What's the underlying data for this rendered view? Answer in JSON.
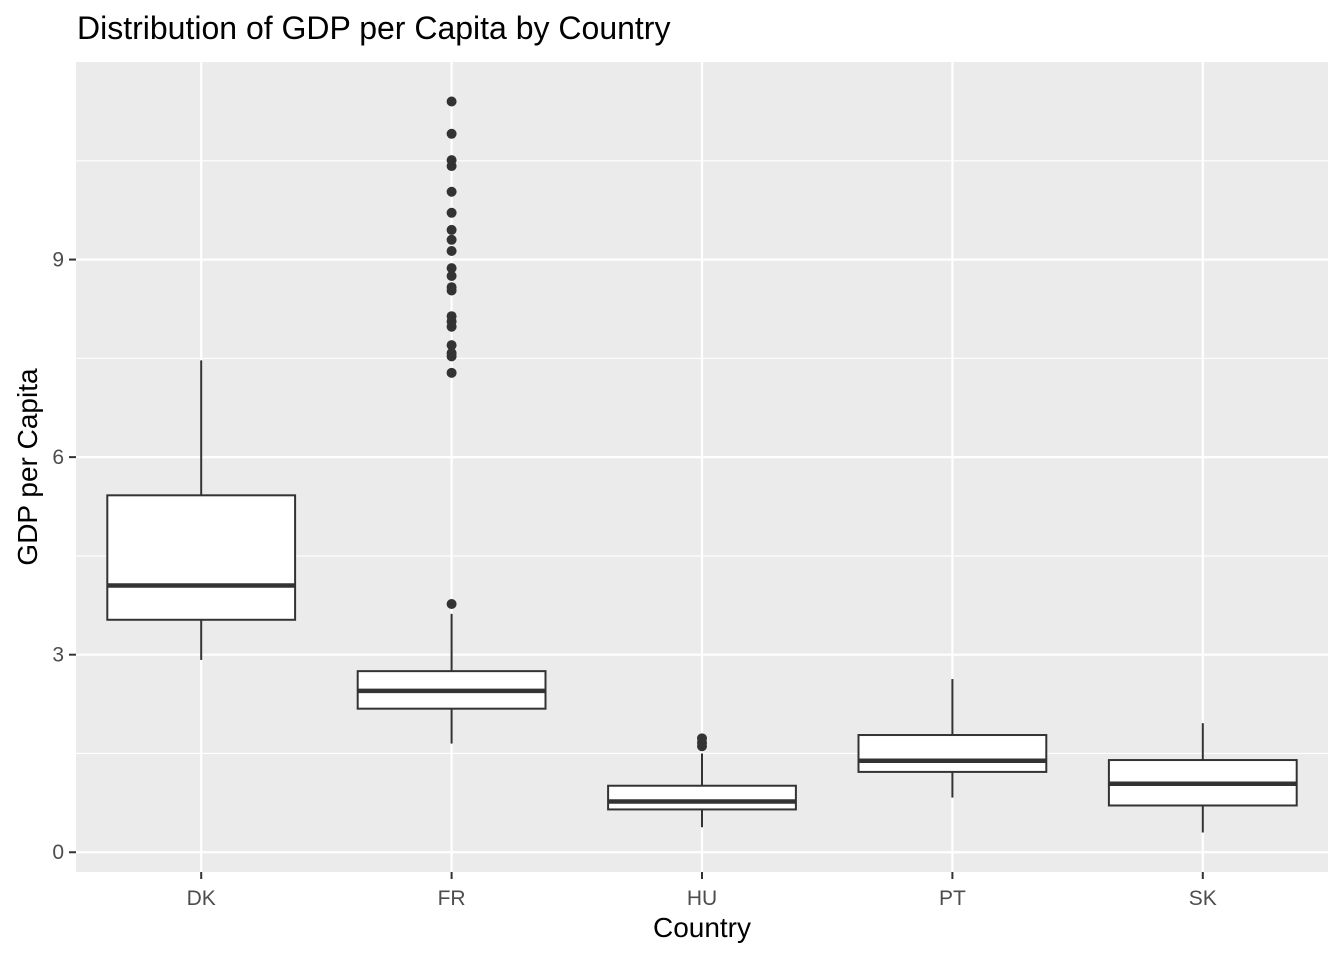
{
  "chart_data": {
    "type": "box",
    "title": "Distribution of GDP per Capita by Country",
    "xlabel": "Country",
    "ylabel": "GDP per Capita",
    "ylim": [
      -0.3,
      12.0
    ],
    "yticks": [
      0,
      3,
      6,
      9
    ],
    "ygrid_minor": [
      1.5,
      4.5,
      7.5,
      10.5
    ],
    "grid": true,
    "background": "#ebebeb",
    "categories": [
      "DK",
      "FR",
      "HU",
      "PT",
      "SK"
    ],
    "boxes": [
      {
        "category": "DK",
        "whisker_low": 2.92,
        "q1": 3.53,
        "median": 4.05,
        "q3": 5.42,
        "whisker_high": 7.47,
        "outliers": []
      },
      {
        "category": "FR",
        "whisker_low": 1.65,
        "q1": 2.18,
        "median": 2.45,
        "q3": 2.75,
        "whisker_high": 3.62,
        "outliers": [
          3.77,
          7.28,
          7.53,
          7.58,
          7.7,
          7.98,
          8.06,
          8.14,
          8.53,
          8.58,
          8.75,
          8.87,
          9.13,
          9.3,
          9.45,
          9.71,
          10.03,
          10.42,
          10.51,
          10.91,
          11.4
        ]
      },
      {
        "category": "HU",
        "whisker_low": 0.38,
        "q1": 0.65,
        "median": 0.77,
        "q3": 1.01,
        "whisker_high": 1.5,
        "outliers": [
          1.61,
          1.66,
          1.73
        ]
      },
      {
        "category": "PT",
        "whisker_low": 0.83,
        "q1": 1.22,
        "median": 1.39,
        "q3": 1.78,
        "whisker_high": 2.63,
        "outliers": []
      },
      {
        "category": "SK",
        "whisker_low": 0.3,
        "q1": 0.71,
        "median": 1.04,
        "q3": 1.4,
        "whisker_high": 1.96,
        "outliers": []
      }
    ]
  }
}
